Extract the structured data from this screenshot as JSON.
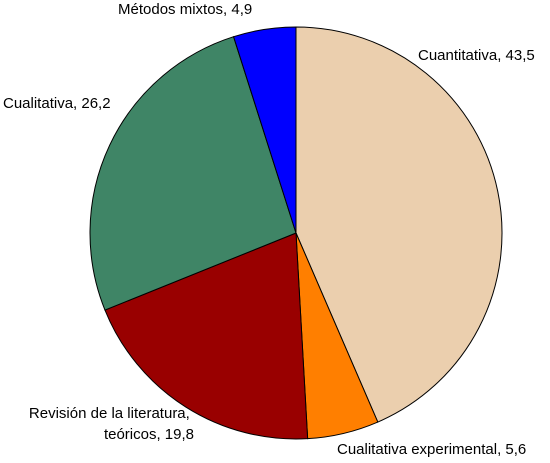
{
  "chart_data": {
    "type": "pie",
    "start_angle_deg": 0,
    "direction": "clockwise",
    "slices": [
      {
        "label": "Cuantitativa, 43,5",
        "value": 43.5,
        "color": "#EBCFAE"
      },
      {
        "label": "Cualitativa experimental, 5,6",
        "value": 5.6,
        "color": "#FF7F00"
      },
      {
        "label_lines": [
          "Revisión de la literatura,",
          "teóricos, 19,8"
        ],
        "value": 19.8,
        "color": "#990000"
      },
      {
        "label": "Cualitativa, 26,2",
        "value": 26.2,
        "color": "#3F8566"
      },
      {
        "label": "Métodos mixtos, 4,9",
        "value": 4.9,
        "color": "#0000FF"
      }
    ]
  }
}
